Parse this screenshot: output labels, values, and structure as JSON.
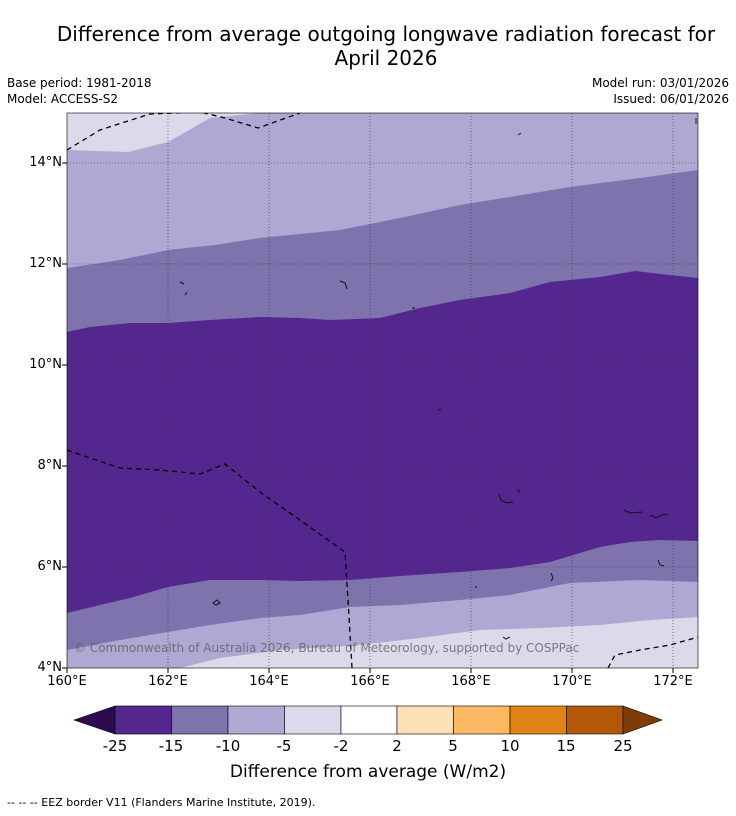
{
  "title_line1": "Difference from average outgoing longwave radiation forecast for",
  "title_line2": "April 2026",
  "base_period": "Base period: 1981-2018",
  "model": "Model: ACCESS-S2",
  "model_run": "Model run: 03/01/2026",
  "issued": "Issued: 06/01/2026",
  "lat_labels": [
    "14°N",
    "12°N",
    "10°N",
    "8°N",
    "6°N",
    "4°N"
  ],
  "lon_labels": [
    "160°E",
    "162°E",
    "164°E",
    "166°E",
    "168°E",
    "170°E",
    "172°E"
  ],
  "copyright": "© Commonwealth of Australia 2026, Bureau of Meteorology, supported by COSPPac",
  "colorbar": {
    "title": "Difference from average (W/m2)",
    "ticks": [
      "-25",
      "-15",
      "-10",
      "-5",
      "-2",
      "2",
      "5",
      "10",
      "15",
      "25"
    ],
    "colors": [
      "#2d0a50",
      "#54278f",
      "#7f73ad",
      "#b0a7d3",
      "#dadaeb",
      "#ffffff",
      "#fee0b6",
      "#fdb863",
      "#e08214",
      "#b35806",
      "#7f3b08"
    ]
  },
  "footer": "--  --  -- EEZ border V11 (Flanders Marine Institute, 2019)."
}
